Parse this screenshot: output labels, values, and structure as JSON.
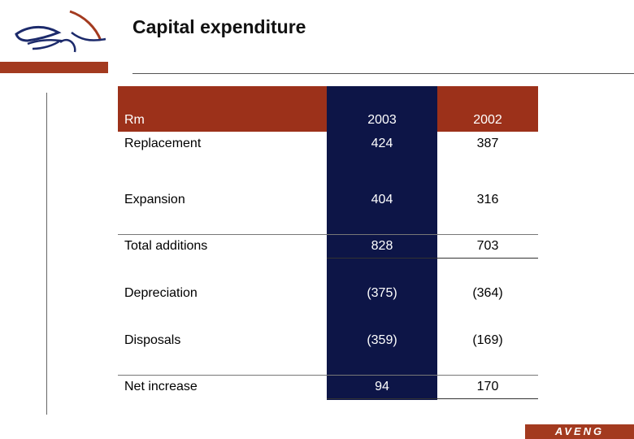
{
  "header": {
    "title": "Capital expenditure"
  },
  "table": {
    "header": {
      "label": "Rm",
      "col_a": "2003",
      "col_b": "2002"
    },
    "rows": [
      {
        "label": "Replacement",
        "col_a": "424",
        "col_b": "387"
      },
      {
        "label": "Expansion",
        "col_a": "404",
        "col_b": "316"
      },
      {
        "label": "Total additions",
        "col_a": "828",
        "col_b": "703"
      },
      {
        "label": "Depreciation",
        "col_a": "(375)",
        "col_b": "(364)"
      },
      {
        "label": "Disposals",
        "col_a": "(359)",
        "col_b": "(169)"
      },
      {
        "label": "Net increase",
        "col_a": "94",
        "col_b": "170"
      }
    ]
  },
  "footer": {
    "brand": "AVENG"
  },
  "colors": {
    "accent_red": "#a33a1f",
    "column_navy": "#0d1547",
    "logo_blue": "#1c2a6b"
  }
}
